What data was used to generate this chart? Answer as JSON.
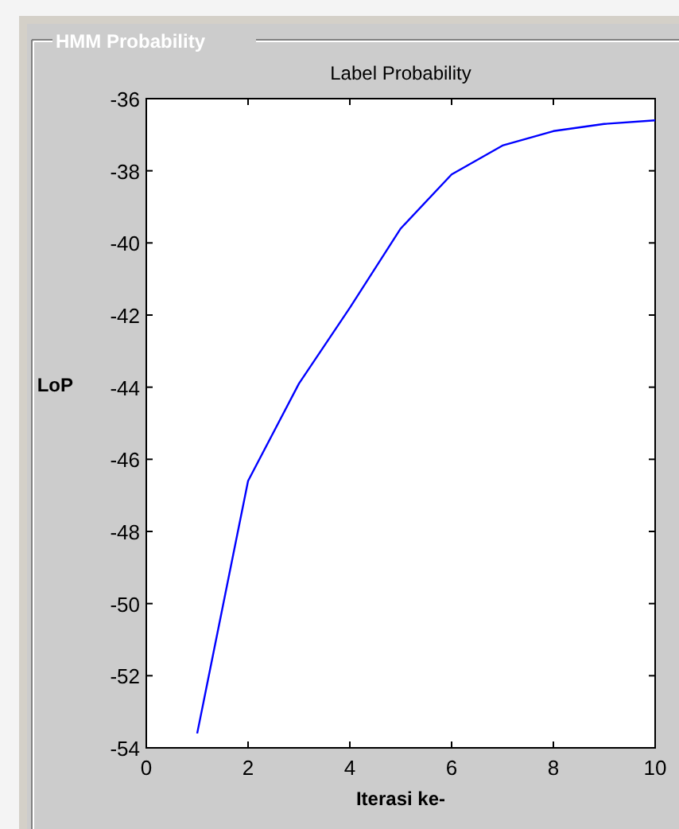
{
  "chart_data": {
    "type": "line",
    "subtitle": "HMM Probability",
    "title": "Label Probability",
    "xlabel": "Iterasi ke-",
    "ylabel": "LoP",
    "x": [
      1,
      2,
      3,
      4,
      5,
      6,
      7,
      8,
      9,
      10
    ],
    "series": [
      {
        "color": "#0000ff",
        "values": [
          -53.6,
          -46.6,
          -43.9,
          -41.8,
          -39.6,
          -38.1,
          -37.3,
          -36.9,
          -36.7,
          -36.6
        ]
      }
    ],
    "xlim": [
      0,
      10
    ],
    "xticks": [
      0,
      2,
      4,
      6,
      8,
      10
    ],
    "ylim": [
      -54,
      -36
    ],
    "yticks": [
      -54,
      -52,
      -50,
      -48,
      -46,
      -44,
      -42,
      -40,
      -38,
      -36
    ]
  }
}
